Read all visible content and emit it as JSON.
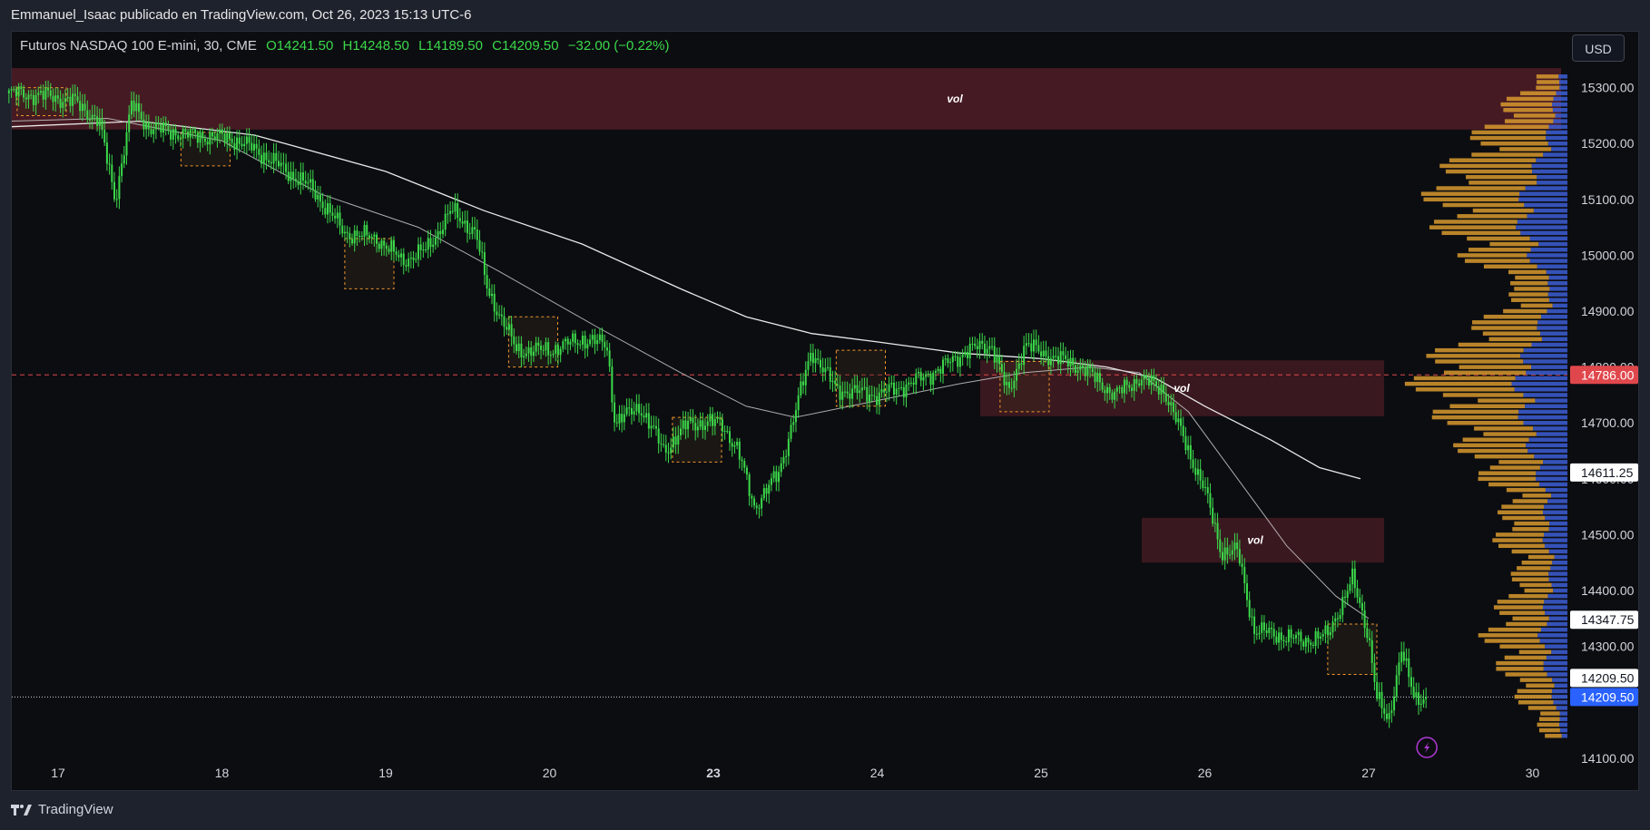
{
  "header": {
    "publisher": "Emmanuel_Isaac publicado en TradingView.com, Oct 26, 2023 15:13 UTC-6"
  },
  "legend": {
    "symbol": "Futuros NASDAQ 100 E-mini, 30, CME",
    "open": "O14241.50",
    "high": "H14248.50",
    "low": "L14189.50",
    "close": "C14209.50",
    "change": "−32.00 (−0.22%)"
  },
  "currency_button": "USD",
  "footer": {
    "brand": "TradingView"
  },
  "colors": {
    "background": "#0c0d11",
    "candle": "#3bd94a",
    "zone": "#5a1f2a",
    "box": "#f0962a",
    "ma_slow": "#e8e8e8",
    "ma_fast": "#c8c8c8",
    "vp_left": "#d89a2e",
    "vp_right": "#3d5fd6",
    "dashed_red": "#e0474c",
    "last_price": "#2962ff"
  },
  "chart_data": {
    "type": "candlestick",
    "x_ticks": [
      "17",
      "18",
      "19",
      "20",
      "23",
      "24",
      "25",
      "26",
      "27",
      "30"
    ],
    "x_ticks_bold": [
      "23"
    ],
    "y_ticks": [
      15300,
      15200,
      15100,
      15000,
      14900,
      14800,
      14700,
      14600,
      14500,
      14400,
      14300,
      14100
    ],
    "y_tick_labels": [
      "15300.00",
      "15200.00",
      "15100.00",
      "15000.00",
      "14900.00",
      "14800.00",
      "14700.00",
      "14600.00",
      "14500.00",
      "14400.00",
      "14300.00",
      "14100.00"
    ],
    "price_range": [
      14090,
      15340
    ],
    "price_labels": [
      {
        "value": 14786.0,
        "text": "14786.00",
        "style": "red"
      },
      {
        "value": 14611.25,
        "text": "14611.25",
        "style": "white"
      },
      {
        "value": 14347.75,
        "text": "14347.75",
        "style": "white"
      },
      {
        "value": 14209.5,
        "text": "14209.50",
        "style": "white-upper"
      },
      {
        "value": 14209.5,
        "text": "14209.50",
        "style": "blue"
      }
    ],
    "horizontal_lines": [
      {
        "value": 14786.0,
        "style": "dashed-red"
      },
      {
        "value": 14209.5,
        "style": "dotted-white"
      }
    ],
    "zones": [
      {
        "label": "vol",
        "top": 15335,
        "bottom": 15225,
        "x_start": 16.7,
        "x_end": 29.8
      },
      {
        "label": "vol",
        "top": 14812,
        "bottom": 14712,
        "x_start": 24.6,
        "x_end": 26.05
      },
      {
        "label": "vol",
        "top": 14530,
        "bottom": 14450,
        "x_start": 25.95,
        "x_end": 26.05
      }
    ],
    "close_path": [
      [
        16.7,
        15290
      ],
      [
        16.95,
        15285
      ],
      [
        17.1,
        15275
      ],
      [
        17.25,
        15240
      ],
      [
        17.35,
        15100
      ],
      [
        17.45,
        15270
      ],
      [
        17.55,
        15230
      ],
      [
        17.8,
        15215
      ],
      [
        18.05,
        15210
      ],
      [
        18.2,
        15190
      ],
      [
        18.35,
        15160
      ],
      [
        18.55,
        15120
      ],
      [
        18.75,
        15040
      ],
      [
        18.95,
        15030
      ],
      [
        19.1,
        14990
      ],
      [
        19.25,
        15010
      ],
      [
        19.4,
        15080
      ],
      [
        19.55,
        15040
      ],
      [
        19.62,
        14940
      ],
      [
        19.8,
        14830
      ],
      [
        20.0,
        14830
      ],
      [
        20.2,
        14850
      ],
      [
        20.35,
        14840
      ],
      [
        20.4,
        14700
      ],
      [
        20.55,
        14730
      ],
      [
        20.7,
        14650
      ],
      [
        20.85,
        14700
      ],
      [
        21.05,
        14700
      ],
      [
        21.15,
        14650
      ],
      [
        21.25,
        14550
      ],
      [
        21.4,
        14610
      ],
      [
        21.5,
        14720
      ],
      [
        21.6,
        14830
      ],
      [
        21.75,
        14760
      ],
      [
        22.0,
        14750
      ],
      [
        22.2,
        14770
      ],
      [
        22.4,
        14800
      ],
      [
        22.55,
        14830
      ],
      [
        22.7,
        14840
      ],
      [
        22.8,
        14750
      ],
      [
        22.9,
        14840
      ],
      [
        23.05,
        14820
      ],
      [
        23.25,
        14800
      ],
      [
        23.45,
        14750
      ],
      [
        23.6,
        14780
      ],
      [
        23.75,
        14760
      ],
      [
        23.9,
        14650
      ],
      [
        24.0,
        14580
      ],
      [
        24.1,
        14470
      ],
      [
        24.2,
        14470
      ],
      [
        24.3,
        14330
      ],
      [
        24.45,
        14320
      ],
      [
        24.6,
        14310
      ],
      [
        24.75,
        14320
      ],
      [
        24.9,
        14420
      ],
      [
        25.0,
        14320
      ],
      [
        25.05,
        14210
      ],
      [
        25.12,
        14160
      ],
      [
        25.2,
        14300
      ],
      [
        25.28,
        14200
      ],
      [
        25.35,
        14210
      ]
    ],
    "ma_slow_path": [
      [
        16.7,
        15230
      ],
      [
        17.5,
        15240
      ],
      [
        18.2,
        15215
      ],
      [
        19.0,
        15150
      ],
      [
        19.6,
        15080
      ],
      [
        20.2,
        15020
      ],
      [
        20.8,
        14940
      ],
      [
        21.2,
        14890
      ],
      [
        21.6,
        14860
      ],
      [
        22.0,
        14845
      ],
      [
        22.5,
        14825
      ],
      [
        23.0,
        14815
      ],
      [
        23.4,
        14800
      ],
      [
        23.7,
        14780
      ],
      [
        24.0,
        14730
      ],
      [
        24.4,
        14670
      ],
      [
        24.7,
        14620
      ],
      [
        24.95,
        14600
      ]
    ],
    "ma_fast_path": [
      [
        16.7,
        15240
      ],
      [
        17.3,
        15245
      ],
      [
        18.0,
        15205
      ],
      [
        18.6,
        15110
      ],
      [
        19.2,
        15050
      ],
      [
        19.7,
        14970
      ],
      [
        20.3,
        14870
      ],
      [
        20.8,
        14790
      ],
      [
        21.2,
        14730
      ],
      [
        21.5,
        14710
      ],
      [
        22.0,
        14740
      ],
      [
        22.5,
        14770
      ],
      [
        22.9,
        14790
      ],
      [
        23.3,
        14800
      ],
      [
        23.6,
        14790
      ],
      [
        23.9,
        14720
      ],
      [
        24.2,
        14600
      ],
      [
        24.5,
        14480
      ],
      [
        24.8,
        14390
      ],
      [
        25.0,
        14350
      ]
    ],
    "boxes": [
      {
        "t0": 16.75,
        "t1": 17.05,
        "hi": 15300,
        "lo": 15250
      },
      {
        "t0": 17.75,
        "t1": 18.05,
        "hi": 15220,
        "lo": 15160
      },
      {
        "t0": 18.75,
        "t1": 19.05,
        "hi": 15030,
        "lo": 14940
      },
      {
        "t0": 19.75,
        "t1": 20.05,
        "hi": 14890,
        "lo": 14800
      },
      {
        "t0": 20.75,
        "t1": 21.05,
        "hi": 14710,
        "lo": 14630
      },
      {
        "t0": 21.75,
        "t1": 22.05,
        "hi": 14830,
        "lo": 14730
      },
      {
        "t0": 22.75,
        "t1": 23.05,
        "hi": 14810,
        "lo": 14720
      },
      {
        "t0": 24.75,
        "t1": 25.05,
        "hi": 14340,
        "lo": 14250
      }
    ],
    "volume_profile": {
      "price_step": 10,
      "peak_price": 14786,
      "nodes": [
        {
          "price": 15320,
          "left": 20,
          "right": 8
        },
        {
          "price": 15280,
          "left": 40,
          "right": 12
        },
        {
          "price": 15200,
          "left": 70,
          "right": 20
        },
        {
          "price": 15120,
          "left": 85,
          "right": 40
        },
        {
          "price": 15060,
          "left": 75,
          "right": 45
        },
        {
          "price": 15000,
          "left": 60,
          "right": 35
        },
        {
          "price": 14940,
          "left": 30,
          "right": 15
        },
        {
          "price": 14880,
          "left": 55,
          "right": 25
        },
        {
          "price": 14820,
          "left": 80,
          "right": 40
        },
        {
          "price": 14786,
          "left": 95,
          "right": 48
        },
        {
          "price": 14740,
          "left": 80,
          "right": 45
        },
        {
          "price": 14680,
          "left": 65,
          "right": 38
        },
        {
          "price": 14620,
          "left": 55,
          "right": 30
        },
        {
          "price": 14560,
          "left": 35,
          "right": 20
        },
        {
          "price": 14500,
          "left": 45,
          "right": 22
        },
        {
          "price": 14440,
          "left": 30,
          "right": 15
        },
        {
          "price": 14380,
          "left": 40,
          "right": 20
        },
        {
          "price": 14320,
          "left": 50,
          "right": 25
        },
        {
          "price": 14260,
          "left": 40,
          "right": 20
        },
        {
          "price": 14200,
          "left": 30,
          "right": 12
        },
        {
          "price": 14140,
          "left": 15,
          "right": 5
        }
      ]
    }
  }
}
